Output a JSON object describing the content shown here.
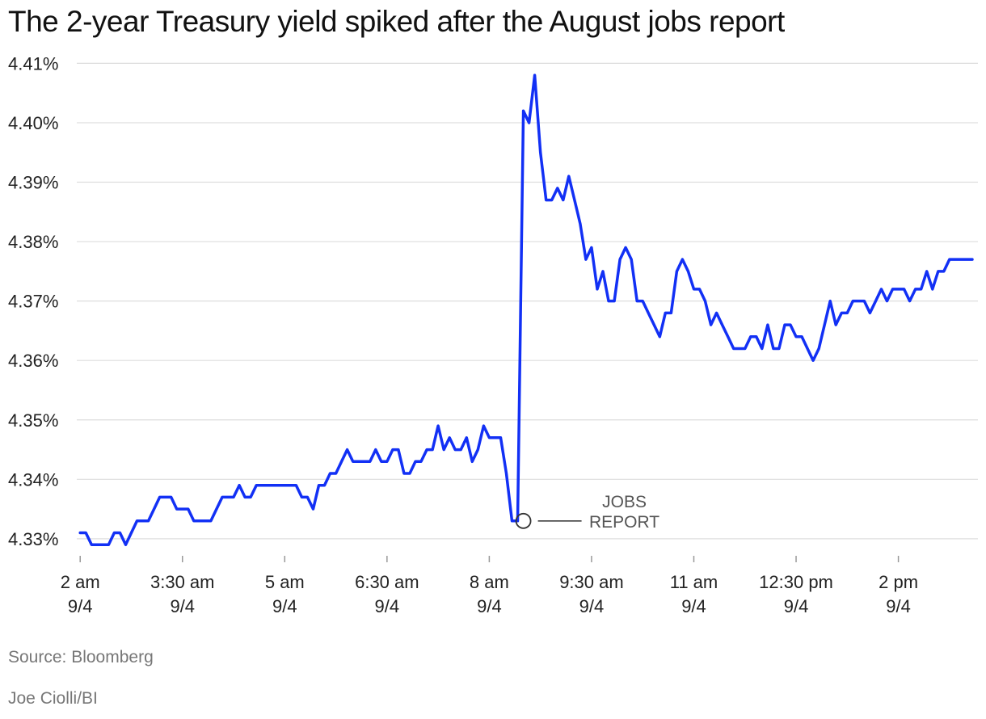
{
  "title": "The 2-year Treasury yield spiked after the August jobs report",
  "source": "Source: Bloomberg",
  "credit": "Joe Ciolli/BI",
  "colors": {
    "line": "#1230f5",
    "grid": "#dddddd",
    "axis": "#999999",
    "annotation": "#333333"
  },
  "chart_data": {
    "type": "line",
    "title": "The 2-year Treasury yield spiked after the August jobs report",
    "xlabel": "",
    "ylabel": "",
    "ylim": [
      4.3255,
      4.4125
    ],
    "xlim": [
      "9/4 01:57",
      "9/4 15:10"
    ],
    "yticks": [
      4.33,
      4.34,
      4.35,
      4.36,
      4.37,
      4.38,
      4.39,
      4.4,
      4.41
    ],
    "ytick_labels": [
      "4.33%",
      "4.34%",
      "4.35%",
      "4.36%",
      "4.37%",
      "4.38%",
      "4.39%",
      "4.40%",
      "4.41%"
    ],
    "xticks": [
      {
        "time": "02:00",
        "label": "2 am",
        "date": "9/4"
      },
      {
        "time": "03:30",
        "label": "3:30 am",
        "date": "9/4"
      },
      {
        "time": "05:00",
        "label": "5 am",
        "date": "9/4"
      },
      {
        "time": "06:30",
        "label": "6:30 am",
        "date": "9/4"
      },
      {
        "time": "08:00",
        "label": "8 am",
        "date": "9/4"
      },
      {
        "time": "09:30",
        "label": "9:30 am",
        "date": "9/4"
      },
      {
        "time": "11:00",
        "label": "11 am",
        "date": "9/4"
      },
      {
        "time": "12:30",
        "label": "12:30 pm",
        "date": "9/4"
      },
      {
        "time": "14:00",
        "label": "2 pm",
        "date": "9/4"
      }
    ],
    "grid": true,
    "legend": "none",
    "annotation": {
      "text_line1": "JOBS",
      "text_line2": "REPORT",
      "time": "08:30",
      "value": 4.333
    },
    "series": [
      {
        "x": [
          "02:00",
          "02:05",
          "02:10",
          "02:15",
          "02:20",
          "02:25",
          "02:30",
          "02:35",
          "02:40",
          "02:45",
          "02:50",
          "02:55",
          "03:00",
          "03:05",
          "03:10",
          "03:15",
          "03:20",
          "03:25",
          "03:30",
          "03:35",
          "03:40",
          "03:45",
          "03:50",
          "03:55",
          "04:00",
          "04:05",
          "04:10",
          "04:15",
          "04:20",
          "04:25",
          "04:30",
          "04:35",
          "04:40",
          "04:45",
          "04:50",
          "04:55",
          "05:00",
          "05:05",
          "05:10",
          "05:15",
          "05:20",
          "05:25",
          "05:30",
          "05:35",
          "05:40",
          "05:45",
          "05:50",
          "05:55",
          "06:00",
          "06:05",
          "06:10",
          "06:15",
          "06:20",
          "06:25",
          "06:30",
          "06:35",
          "06:40",
          "06:45",
          "06:50",
          "06:55",
          "07:00",
          "07:05",
          "07:10",
          "07:15",
          "07:20",
          "07:25",
          "07:30",
          "07:35",
          "07:40",
          "07:45",
          "07:50",
          "07:55",
          "08:00",
          "08:05",
          "08:10",
          "08:15",
          "08:20",
          "08:25",
          "08:30",
          "08:35",
          "08:40",
          "08:45",
          "08:50",
          "08:55",
          "09:00",
          "09:05",
          "09:10",
          "09:15",
          "09:20",
          "09:25",
          "09:30",
          "09:35",
          "09:40",
          "09:45",
          "09:50",
          "09:55",
          "10:00",
          "10:05",
          "10:10",
          "10:15",
          "10:20",
          "10:25",
          "10:30",
          "10:35",
          "10:40",
          "10:45",
          "10:50",
          "10:55",
          "11:00",
          "11:05",
          "11:10",
          "11:15",
          "11:20",
          "11:25",
          "11:30",
          "11:35",
          "11:40",
          "11:45",
          "11:50",
          "11:55",
          "12:00",
          "12:05",
          "12:10",
          "12:15",
          "12:20",
          "12:25",
          "12:30",
          "12:35",
          "12:40",
          "12:45",
          "12:50",
          "12:55",
          "13:00",
          "13:05",
          "13:10",
          "13:15",
          "13:20",
          "13:25",
          "13:30",
          "13:35",
          "13:40",
          "13:45",
          "13:50",
          "13:55",
          "14:00",
          "14:05",
          "14:10",
          "14:15",
          "14:20",
          "14:25",
          "14:30",
          "14:35",
          "14:40",
          "14:45",
          "14:50",
          "14:55",
          "15:00",
          "15:05"
        ],
        "values": [
          4.331,
          4.331,
          4.329,
          4.329,
          4.329,
          4.329,
          4.331,
          4.331,
          4.329,
          4.331,
          4.333,
          4.333,
          4.333,
          4.335,
          4.337,
          4.337,
          4.337,
          4.335,
          4.335,
          4.335,
          4.333,
          4.333,
          4.333,
          4.333,
          4.335,
          4.337,
          4.337,
          4.337,
          4.339,
          4.337,
          4.337,
          4.339,
          4.339,
          4.339,
          4.339,
          4.339,
          4.339,
          4.339,
          4.339,
          4.337,
          4.337,
          4.335,
          4.339,
          4.339,
          4.341,
          4.341,
          4.343,
          4.345,
          4.343,
          4.343,
          4.343,
          4.343,
          4.345,
          4.343,
          4.343,
          4.345,
          4.345,
          4.341,
          4.341,
          4.343,
          4.343,
          4.345,
          4.345,
          4.349,
          4.345,
          4.347,
          4.345,
          4.345,
          4.347,
          4.343,
          4.345,
          4.349,
          4.347,
          4.347,
          4.347,
          4.341,
          4.333,
          4.333,
          4.402,
          4.4,
          4.408,
          4.395,
          4.387,
          4.387,
          4.389,
          4.387,
          4.391,
          4.387,
          4.383,
          4.377,
          4.379,
          4.372,
          4.375,
          4.37,
          4.37,
          4.377,
          4.379,
          4.377,
          4.37,
          4.37,
          4.368,
          4.366,
          4.364,
          4.368,
          4.368,
          4.375,
          4.377,
          4.375,
          4.372,
          4.372,
          4.37,
          4.366,
          4.368,
          4.366,
          4.364,
          4.362,
          4.362,
          4.362,
          4.364,
          4.364,
          4.362,
          4.366,
          4.362,
          4.362,
          4.366,
          4.366,
          4.364,
          4.364,
          4.362,
          4.36,
          4.362,
          4.366,
          4.37,
          4.366,
          4.368,
          4.368,
          4.37,
          4.37,
          4.37,
          4.368,
          4.37,
          4.372,
          4.37,
          4.372,
          4.372,
          4.372,
          4.37,
          4.372,
          4.372,
          4.375,
          4.372,
          4.375,
          4.375,
          4.377,
          4.377,
          4.377,
          4.377,
          4.377
        ]
      }
    ]
  }
}
